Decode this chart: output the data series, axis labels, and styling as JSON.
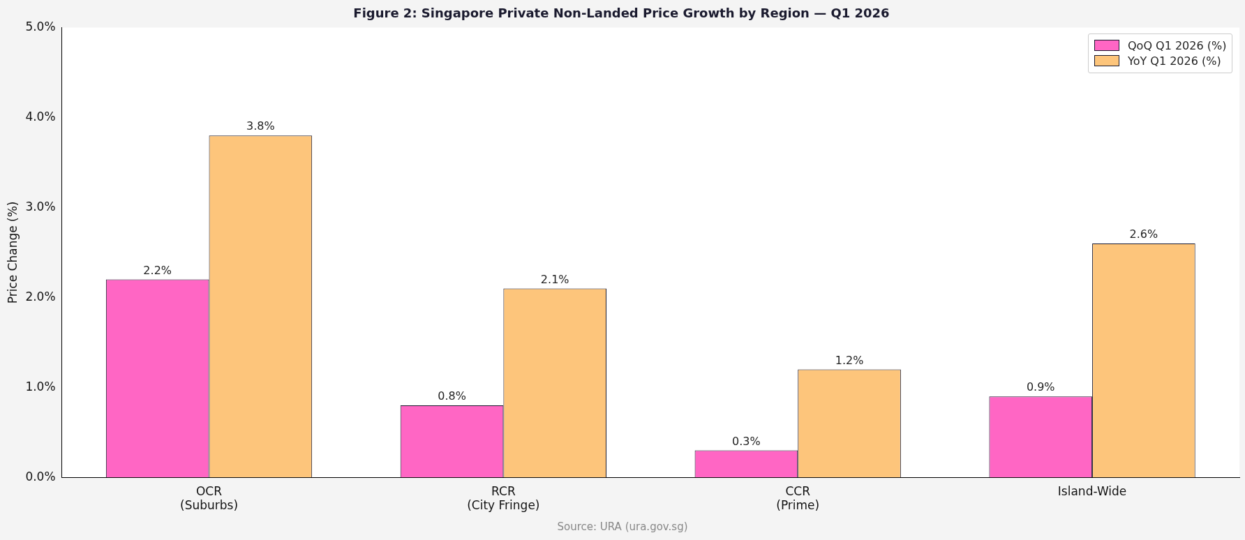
{
  "chart_data": {
    "type": "bar",
    "title": "Figure 2: Singapore Private Non-Landed Price Growth by Region — Q1 2026",
    "ylabel": "Price Change (%)",
    "categories": [
      "OCR\n(Suburbs)",
      "RCR\n(City Fringe)",
      "CCR\n(Prime)",
      "Island-Wide"
    ],
    "series": [
      {
        "name": "QoQ Q1 2026 (%)",
        "color": "#ff66c4",
        "values": [
          2.2,
          0.8,
          0.3,
          0.9
        ],
        "value_labels": [
          "2.2%",
          "0.8%",
          "0.3%",
          "0.9%"
        ]
      },
      {
        "name": "YoY Q1 2026 (%)",
        "color": "#fdc57b",
        "values": [
          3.8,
          2.1,
          1.2,
          2.6
        ],
        "value_labels": [
          "3.8%",
          "2.1%",
          "1.2%",
          "2.6%"
        ]
      }
    ],
    "ylim": [
      0,
      5
    ],
    "yticks": [
      {
        "value": 0,
        "label": "0.0%"
      },
      {
        "value": 1,
        "label": "1.0%"
      },
      {
        "value": 2,
        "label": "2.0%"
      },
      {
        "value": 3,
        "label": "3.0%"
      },
      {
        "value": 4,
        "label": "4.0%"
      },
      {
        "value": 5,
        "label": "5.0%"
      }
    ],
    "grid": false,
    "legend": "top right",
    "annotations": [
      "Source: URA (ura.gov.sg)"
    ]
  }
}
